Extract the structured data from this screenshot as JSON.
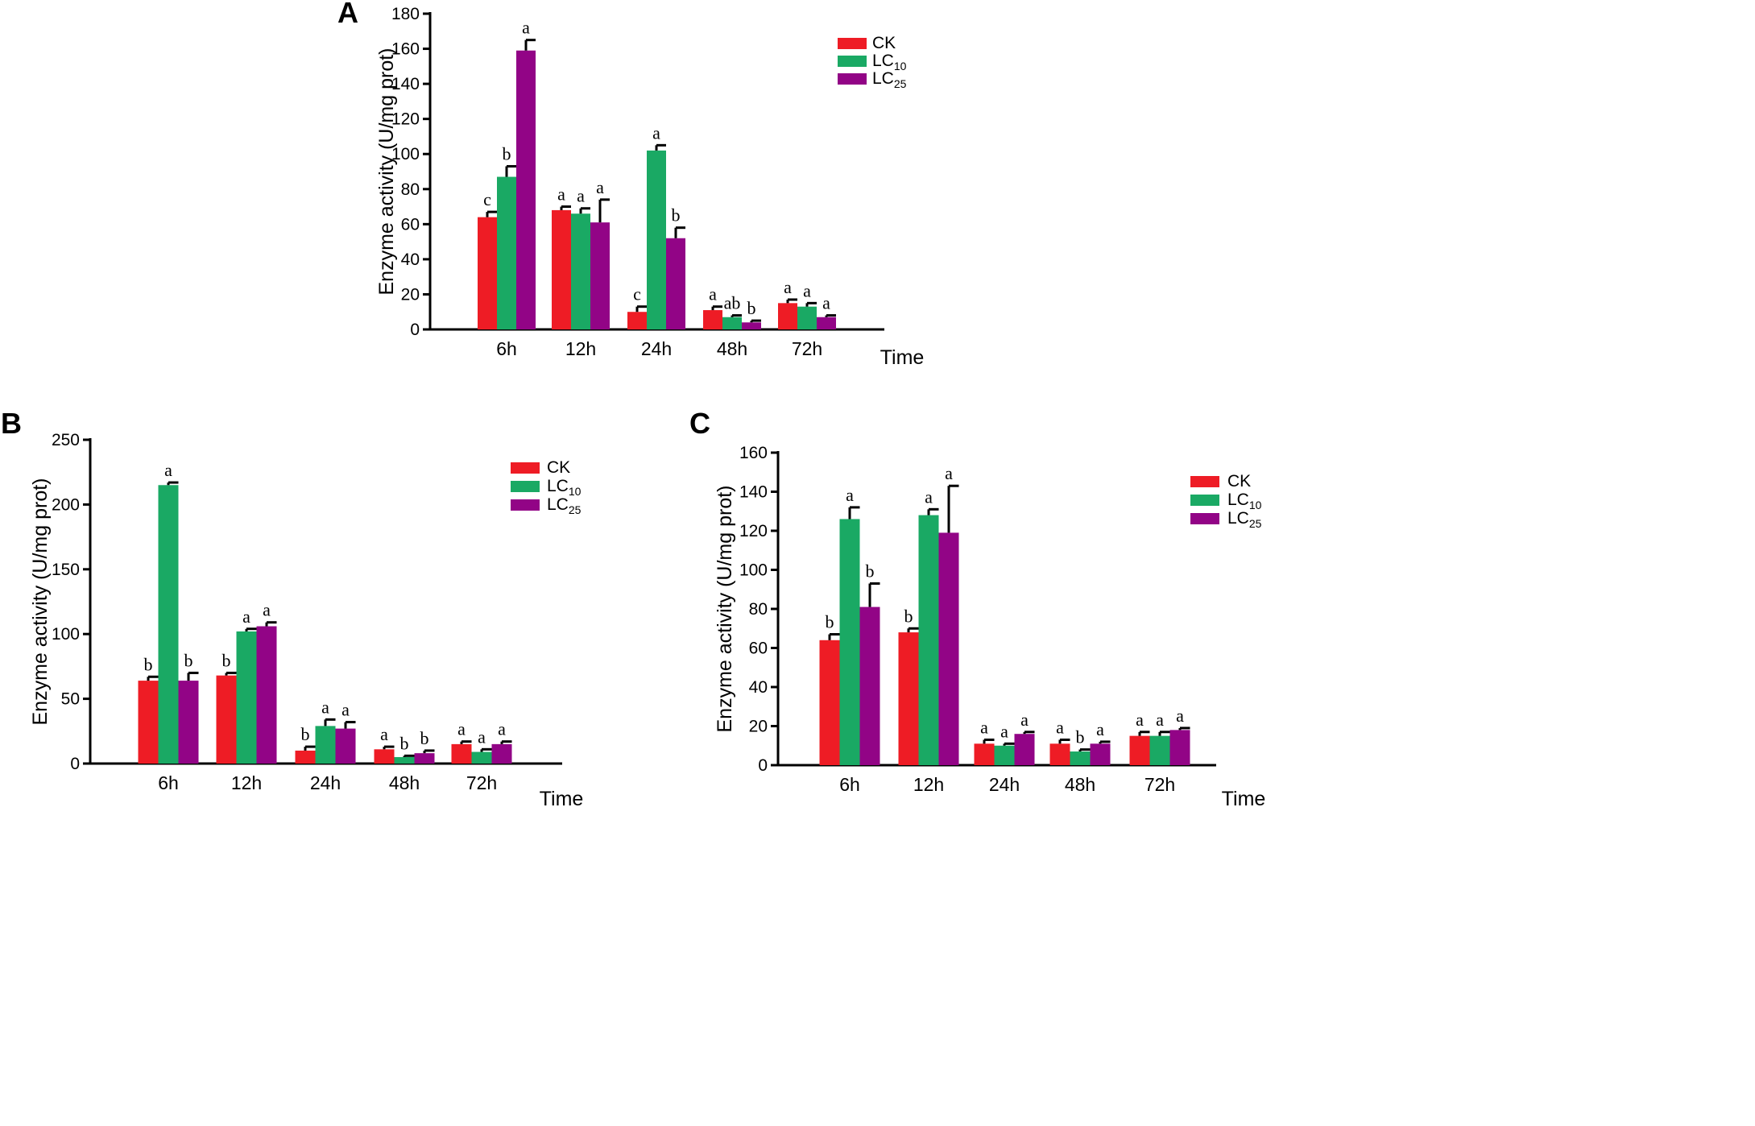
{
  "series_styles": [
    {
      "name": "CK",
      "sub": "",
      "color": "#ee1c25"
    },
    {
      "name": "LC",
      "sub": "10",
      "color": "#1aa964"
    },
    {
      "name": "LC",
      "sub": "25",
      "color": "#920486"
    }
  ],
  "chart_data": [
    {
      "panel": "A",
      "type": "bar",
      "ylabel": "Enzyme activity (U/mg prot)",
      "xlabel": "Time",
      "ylim": [
        0,
        180
      ],
      "yticks": [
        0,
        20,
        40,
        60,
        80,
        100,
        120,
        140,
        160,
        180
      ],
      "categories": [
        "6h",
        "12h",
        "24h",
        "48h",
        "72h"
      ],
      "series": [
        {
          "name": "CK",
          "values": [
            64,
            68,
            10,
            11,
            15
          ],
          "errors": [
            3,
            2,
            3,
            2,
            2
          ],
          "labels": [
            "c",
            "a",
            "c",
            "a",
            "a"
          ]
        },
        {
          "name": "LC10",
          "values": [
            87,
            66,
            102,
            7,
            13
          ],
          "errors": [
            6,
            3,
            3,
            1,
            2
          ],
          "labels": [
            "b",
            "a",
            "a",
            "ab",
            "a"
          ]
        },
        {
          "name": "LC25",
          "values": [
            159,
            61,
            52,
            4,
            7
          ],
          "errors": [
            6,
            13,
            6,
            1,
            1
          ],
          "labels": [
            "a",
            "a",
            "b",
            "b",
            "a"
          ]
        }
      ],
      "legend": [
        "CK",
        "LC10",
        "LC25"
      ]
    },
    {
      "panel": "B",
      "type": "bar",
      "ylabel": "Enzyme activity (U/mg prot)",
      "xlabel": "Time",
      "ylim": [
        0,
        250
      ],
      "yticks": [
        0,
        50,
        100,
        150,
        200,
        250
      ],
      "categories": [
        "6h",
        "12h",
        "24h",
        "48h",
        "72h"
      ],
      "series": [
        {
          "name": "CK",
          "values": [
            64,
            68,
            10,
            11,
            15
          ],
          "errors": [
            3,
            2,
            3,
            2,
            2
          ],
          "labels": [
            "b",
            "b",
            "b",
            "a",
            "a"
          ]
        },
        {
          "name": "LC10",
          "values": [
            215,
            102,
            29,
            5,
            9
          ],
          "errors": [
            2,
            2,
            5,
            1,
            2
          ],
          "labels": [
            "a",
            "a",
            "a",
            "b",
            "a"
          ]
        },
        {
          "name": "LC25",
          "values": [
            64,
            106,
            27,
            8,
            15
          ],
          "errors": [
            6,
            3,
            5,
            2,
            2
          ],
          "labels": [
            "b",
            "a",
            "a",
            "b",
            "a"
          ]
        }
      ],
      "legend": [
        "CK",
        "LC10",
        "LC25"
      ]
    },
    {
      "panel": "C",
      "type": "bar",
      "ylabel": "Enzyme activity (U/mg prot)",
      "xlabel": "Time",
      "ylim": [
        0,
        160
      ],
      "yticks": [
        0,
        20,
        40,
        60,
        80,
        100,
        120,
        140,
        160
      ],
      "categories": [
        "6h",
        "12h",
        "24h",
        "48h",
        "72h"
      ],
      "series": [
        {
          "name": "CK",
          "values": [
            64,
            68,
            11,
            11,
            15
          ],
          "errors": [
            3,
            2,
            2,
            2,
            2
          ],
          "labels": [
            "b",
            "b",
            "a",
            "a",
            "a"
          ]
        },
        {
          "name": "LC10",
          "values": [
            126,
            128,
            10,
            7,
            15
          ],
          "errors": [
            6,
            3,
            1,
            1,
            2
          ],
          "labels": [
            "a",
            "a",
            "a",
            "b",
            "a"
          ]
        },
        {
          "name": "LC25",
          "values": [
            81,
            119,
            16,
            11,
            18
          ],
          "errors": [
            12,
            24,
            1,
            1,
            1
          ],
          "labels": [
            "b",
            "a",
            "a",
            "a",
            "a"
          ]
        }
      ],
      "legend": [
        "CK",
        "LC10",
        "LC25"
      ]
    }
  ]
}
